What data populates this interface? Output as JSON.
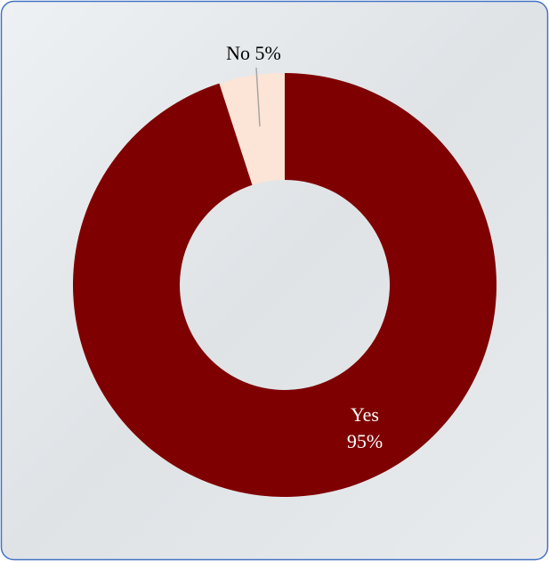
{
  "chart_data": {
    "type": "donut",
    "categories": [
      "Yes",
      "No"
    ],
    "values": [
      95,
      5
    ],
    "value_labels": [
      "95%",
      "5%"
    ],
    "colors": [
      "#7f0000",
      "#fce4d6"
    ]
  }
}
